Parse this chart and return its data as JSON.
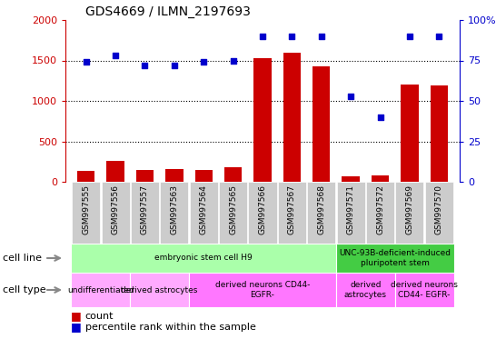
{
  "title": "GDS4669 / ILMN_2197693",
  "samples": [
    "GSM997555",
    "GSM997556",
    "GSM997557",
    "GSM997563",
    "GSM997564",
    "GSM997565",
    "GSM997566",
    "GSM997567",
    "GSM997568",
    "GSM997571",
    "GSM997572",
    "GSM997569",
    "GSM997570"
  ],
  "counts": [
    130,
    260,
    150,
    160,
    150,
    175,
    1530,
    1590,
    1430,
    70,
    80,
    1200,
    1190
  ],
  "percentiles": [
    74,
    78,
    72,
    72,
    74,
    75,
    90,
    90,
    90,
    53,
    40,
    90,
    90
  ],
  "ylim_left": [
    0,
    2000
  ],
  "ylim_right": [
    0,
    100
  ],
  "yticks_left": [
    0,
    500,
    1000,
    1500,
    2000
  ],
  "yticks_right": [
    0,
    25,
    50,
    75,
    100
  ],
  "bar_color": "#cc0000",
  "dot_color": "#0000cc",
  "cell_line_groups": [
    {
      "label": "embryonic stem cell H9",
      "start": 0,
      "end": 9,
      "color": "#aaffaa"
    },
    {
      "label": "UNC-93B-deficient-induced\npluripotent stem",
      "start": 9,
      "end": 13,
      "color": "#44cc44"
    }
  ],
  "cell_type_groups": [
    {
      "label": "undifferentiated",
      "start": 0,
      "end": 2,
      "color": "#ffaaff"
    },
    {
      "label": "derived astrocytes",
      "start": 2,
      "end": 4,
      "color": "#ffaaff"
    },
    {
      "label": "derived neurons CD44-\nEGFR-",
      "start": 4,
      "end": 9,
      "color": "#ff77ff"
    },
    {
      "label": "derived\nastrocytes",
      "start": 9,
      "end": 11,
      "color": "#ff77ff"
    },
    {
      "label": "derived neurons\nCD44- EGFR-",
      "start": 11,
      "end": 13,
      "color": "#ff77ff"
    }
  ],
  "tick_bg_color": "#cccccc",
  "legend_count_color": "#cc0000",
  "legend_dot_color": "#0000cc"
}
